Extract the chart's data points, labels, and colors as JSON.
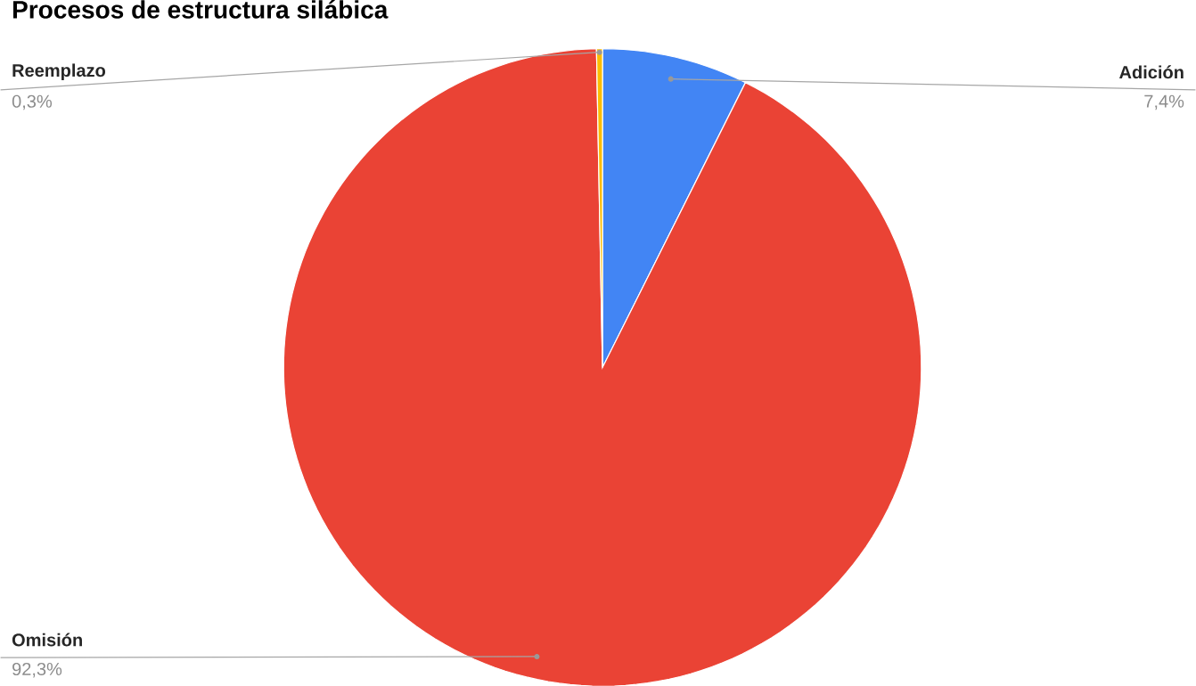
{
  "chart_data": {
    "type": "pie",
    "title": "Procesos de estructura silábica",
    "categories": [
      "Adición",
      "Omisión",
      "Reemplazo"
    ],
    "values": [
      7.4,
      92.3,
      0.3
    ],
    "value_labels": [
      "7,4%",
      "92,3%",
      "0,3%"
    ],
    "colors": [
      "#4285f4",
      "#ea4335",
      "#fbbc04"
    ]
  }
}
